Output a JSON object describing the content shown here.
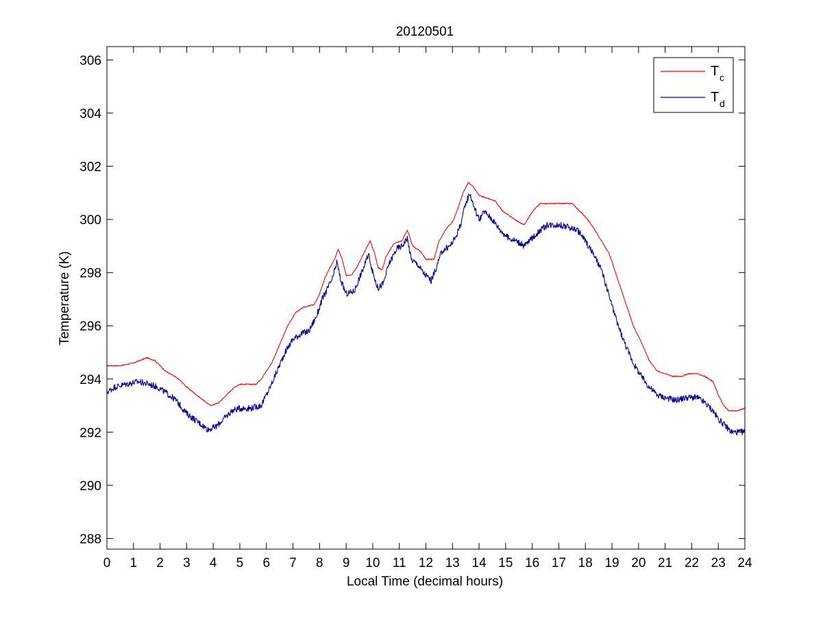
{
  "chart_data": {
    "type": "line",
    "title": "20120501",
    "xlabel": "Local Time (decimal hours)",
    "ylabel": "Temperature (K)",
    "xlim": [
      0,
      24
    ],
    "ylim": [
      287.6,
      306.5
    ],
    "xticks": [
      0,
      1,
      2,
      3,
      4,
      5,
      6,
      7,
      8,
      9,
      10,
      11,
      12,
      13,
      14,
      15,
      16,
      17,
      18,
      19,
      20,
      21,
      22,
      23,
      24
    ],
    "xtick_labels": [
      "0",
      "1",
      "2",
      "3",
      "4",
      "5",
      "6",
      "7",
      "8",
      "9",
      "10",
      "11",
      "12",
      "13",
      "14",
      "15",
      "16",
      "17",
      "18",
      "19",
      "20",
      "21",
      "22",
      "23",
      "24"
    ],
    "yticks": [
      288,
      290,
      292,
      294,
      296,
      298,
      300,
      302,
      304,
      306
    ],
    "ytick_labels": [
      "288",
      "290",
      "292",
      "294",
      "296",
      "298",
      "300",
      "302",
      "304",
      "306"
    ],
    "grid": false,
    "legend_position": "top-right",
    "series": [
      {
        "name": "T",
        "subscript": "c",
        "color": "#ff0000",
        "noise": 0.02,
        "points": [
          [
            0,
            294.5
          ],
          [
            0.5,
            294.5
          ],
          [
            1.0,
            294.6
          ],
          [
            1.5,
            294.8
          ],
          [
            1.8,
            294.7
          ],
          [
            2.2,
            294.3
          ],
          [
            2.7,
            294.0
          ],
          [
            3.0,
            293.7
          ],
          [
            3.5,
            293.3
          ],
          [
            3.9,
            293.0
          ],
          [
            4.2,
            293.1
          ],
          [
            4.5,
            293.4
          ],
          [
            4.8,
            293.7
          ],
          [
            5.0,
            293.8
          ],
          [
            5.3,
            293.8
          ],
          [
            5.6,
            293.8
          ],
          [
            5.8,
            294.0
          ],
          [
            6.2,
            294.6
          ],
          [
            6.5,
            295.3
          ],
          [
            6.8,
            296.0
          ],
          [
            7.1,
            296.5
          ],
          [
            7.4,
            296.7
          ],
          [
            7.8,
            296.8
          ],
          [
            8.0,
            297.2
          ],
          [
            8.2,
            297.8
          ],
          [
            8.4,
            298.2
          ],
          [
            8.6,
            298.6
          ],
          [
            8.7,
            298.9
          ],
          [
            8.85,
            298.5
          ],
          [
            9.0,
            297.9
          ],
          [
            9.2,
            297.9
          ],
          [
            9.4,
            298.2
          ],
          [
            9.6,
            298.6
          ],
          [
            9.8,
            299.0
          ],
          [
            9.9,
            299.2
          ],
          [
            10.05,
            298.8
          ],
          [
            10.2,
            298.2
          ],
          [
            10.35,
            298.1
          ],
          [
            10.5,
            298.6
          ],
          [
            10.8,
            299.1
          ],
          [
            11.1,
            299.2
          ],
          [
            11.3,
            299.6
          ],
          [
            11.5,
            299.0
          ],
          [
            11.8,
            298.8
          ],
          [
            12.0,
            298.5
          ],
          [
            12.3,
            298.5
          ],
          [
            12.5,
            299.2
          ],
          [
            12.8,
            299.7
          ],
          [
            13.0,
            299.9
          ],
          [
            13.2,
            300.4
          ],
          [
            13.4,
            301.0
          ],
          [
            13.6,
            301.4
          ],
          [
            13.8,
            301.2
          ],
          [
            14.0,
            300.9
          ],
          [
            14.3,
            300.8
          ],
          [
            14.6,
            300.7
          ],
          [
            14.9,
            300.3
          ],
          [
            15.2,
            300.1
          ],
          [
            15.5,
            299.9
          ],
          [
            15.7,
            299.8
          ],
          [
            16.0,
            300.3
          ],
          [
            16.3,
            300.6
          ],
          [
            16.6,
            300.6
          ],
          [
            17.0,
            300.6
          ],
          [
            17.5,
            300.6
          ],
          [
            17.8,
            300.3
          ],
          [
            18.0,
            300.1
          ],
          [
            18.3,
            299.7
          ],
          [
            18.6,
            299.2
          ],
          [
            18.9,
            298.7
          ],
          [
            19.2,
            297.8
          ],
          [
            19.5,
            296.9
          ],
          [
            19.8,
            296.0
          ],
          [
            20.1,
            295.4
          ],
          [
            20.4,
            294.7
          ],
          [
            20.7,
            294.3
          ],
          [
            21.0,
            294.2
          ],
          [
            21.3,
            294.1
          ],
          [
            21.6,
            294.1
          ],
          [
            21.9,
            294.2
          ],
          [
            22.2,
            294.2
          ],
          [
            22.5,
            294.1
          ],
          [
            22.8,
            293.9
          ],
          [
            23.0,
            293.4
          ],
          [
            23.2,
            293.0
          ],
          [
            23.4,
            292.8
          ],
          [
            23.7,
            292.8
          ],
          [
            24.0,
            292.9
          ]
        ]
      },
      {
        "name": "T",
        "subscript": "d",
        "color": "#00008b",
        "noise": 0.12,
        "points": [
          [
            0,
            293.5
          ],
          [
            0.3,
            293.7
          ],
          [
            0.7,
            293.8
          ],
          [
            1.2,
            293.9
          ],
          [
            1.6,
            293.8
          ],
          [
            1.9,
            293.7
          ],
          [
            2.2,
            293.5
          ],
          [
            2.6,
            293.2
          ],
          [
            3.0,
            292.7
          ],
          [
            3.4,
            292.4
          ],
          [
            3.8,
            292.1
          ],
          [
            4.1,
            292.2
          ],
          [
            4.4,
            292.5
          ],
          [
            4.7,
            292.8
          ],
          [
            5.0,
            292.9
          ],
          [
            5.4,
            292.9
          ],
          [
            5.8,
            293.0
          ],
          [
            6.1,
            293.6
          ],
          [
            6.4,
            294.3
          ],
          [
            6.7,
            295.0
          ],
          [
            7.0,
            295.5
          ],
          [
            7.3,
            295.7
          ],
          [
            7.6,
            295.8
          ],
          [
            7.9,
            296.4
          ],
          [
            8.1,
            297.0
          ],
          [
            8.3,
            297.4
          ],
          [
            8.5,
            297.8
          ],
          [
            8.65,
            298.4
          ],
          [
            8.8,
            297.7
          ],
          [
            9.0,
            297.2
          ],
          [
            9.3,
            297.3
          ],
          [
            9.5,
            297.8
          ],
          [
            9.7,
            298.3
          ],
          [
            9.85,
            298.7
          ],
          [
            10.0,
            298.0
          ],
          [
            10.2,
            297.4
          ],
          [
            10.4,
            297.6
          ],
          [
            10.6,
            298.3
          ],
          [
            10.9,
            298.9
          ],
          [
            11.1,
            299.0
          ],
          [
            11.3,
            299.3
          ],
          [
            11.45,
            298.5
          ],
          [
            11.7,
            298.3
          ],
          [
            11.9,
            298.0
          ],
          [
            12.2,
            297.7
          ],
          [
            12.4,
            298.2
          ],
          [
            12.6,
            298.8
          ],
          [
            12.9,
            299.0
          ],
          [
            13.1,
            299.3
          ],
          [
            13.3,
            299.8
          ],
          [
            13.5,
            300.6
          ],
          [
            13.65,
            301.0
          ],
          [
            13.8,
            300.5
          ],
          [
            14.0,
            300.0
          ],
          [
            14.2,
            300.3
          ],
          [
            14.5,
            300.0
          ],
          [
            14.8,
            299.6
          ],
          [
            15.1,
            299.3
          ],
          [
            15.4,
            299.2
          ],
          [
            15.7,
            299.0
          ],
          [
            16.0,
            299.3
          ],
          [
            16.3,
            299.6
          ],
          [
            16.6,
            299.8
          ],
          [
            17.0,
            299.8
          ],
          [
            17.4,
            299.7
          ],
          [
            17.7,
            299.6
          ],
          [
            18.0,
            299.2
          ],
          [
            18.3,
            298.7
          ],
          [
            18.6,
            298.1
          ],
          [
            18.9,
            297.1
          ],
          [
            19.2,
            296.1
          ],
          [
            19.5,
            295.3
          ],
          [
            19.8,
            294.6
          ],
          [
            20.1,
            294.1
          ],
          [
            20.4,
            293.7
          ],
          [
            20.7,
            293.4
          ],
          [
            21.0,
            293.3
          ],
          [
            21.4,
            293.2
          ],
          [
            21.8,
            293.3
          ],
          [
            22.2,
            293.3
          ],
          [
            22.5,
            293.1
          ],
          [
            22.8,
            292.8
          ],
          [
            23.0,
            292.5
          ],
          [
            23.2,
            292.3
          ],
          [
            23.5,
            292.0
          ],
          [
            23.8,
            292.0
          ],
          [
            24.0,
            292.0
          ]
        ]
      }
    ]
  }
}
